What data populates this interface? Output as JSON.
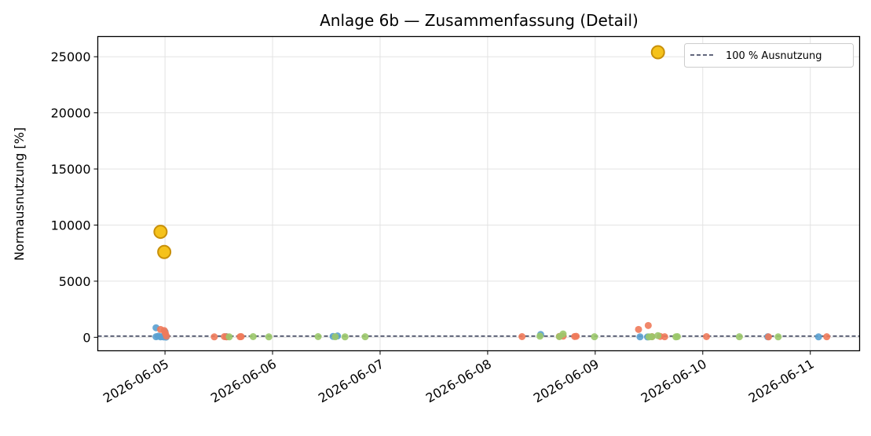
{
  "chart_data": {
    "type": "scatter",
    "title": "Anlage 6b — Zusammenfassung (Detail)",
    "xlabel": "",
    "ylabel": "Normausnutzung [%]",
    "xlim": [
      "2026-06-04 09:00",
      "2026-06-11 11:00"
    ],
    "ylim": [
      -1200,
      26800
    ],
    "yticks": [
      0,
      5000,
      10000,
      15000,
      20000,
      25000
    ],
    "xticks": [
      "2026-06-05",
      "2026-06-06",
      "2026-06-07",
      "2026-06-08",
      "2026-06-09",
      "2026-06-10",
      "2026-06-11"
    ],
    "grid": true,
    "legend_position": "top-right",
    "reference_line": {
      "label": "100 % Ausnutzung",
      "y": 100,
      "color": "#2e3450",
      "style": "dashed"
    },
    "colors": {
      "blue": "#5aa0d0",
      "orange": "#f07a5a",
      "green": "#9bc86a",
      "highlight_fill": "#f5c21b",
      "highlight_edge": "#c8900a"
    },
    "series": [
      {
        "color": "blue",
        "points": [
          [
            "2026-06-04 22:00",
            850
          ],
          [
            "2026-06-04 22:00",
            50
          ],
          [
            "2026-06-04 22:30",
            100
          ],
          [
            "2026-06-04 23:00",
            40
          ],
          [
            "2026-06-04 23:20",
            60
          ],
          [
            "2026-06-04 23:45",
            30
          ],
          [
            "2026-06-05 00:00",
            500
          ],
          [
            "2026-06-05 00:15",
            20
          ],
          [
            "2026-06-05 13:40",
            60
          ],
          [
            "2026-06-06 13:30",
            80
          ],
          [
            "2026-06-06 14:30",
            120
          ],
          [
            "2026-06-08 11:50",
            250
          ],
          [
            "2026-06-09 10:00",
            40
          ],
          [
            "2026-06-09 11:40",
            30
          ],
          [
            "2026-06-10 14:30",
            50
          ],
          [
            "2026-06-11 01:50",
            40
          ]
        ]
      },
      {
        "color": "orange",
        "points": [
          [
            "2026-06-04 23:00",
            700
          ],
          [
            "2026-06-04 23:50",
            600
          ],
          [
            "2026-06-05 00:05",
            350
          ],
          [
            "2026-06-05 00:20",
            100
          ],
          [
            "2026-06-05 11:00",
            40
          ],
          [
            "2026-06-05 13:15",
            60
          ],
          [
            "2026-06-05 13:45",
            40
          ],
          [
            "2026-06-05 16:45",
            50
          ],
          [
            "2026-06-05 17:00",
            60
          ],
          [
            "2026-06-08 07:40",
            60
          ],
          [
            "2026-06-08 16:00",
            80
          ],
          [
            "2026-06-08 16:50",
            100
          ],
          [
            "2026-06-08 19:25",
            70
          ],
          [
            "2026-06-08 19:45",
            90
          ],
          [
            "2026-06-09 09:40",
            700
          ],
          [
            "2026-06-09 11:50",
            1050
          ],
          [
            "2026-06-09 12:40",
            60
          ],
          [
            "2026-06-09 14:30",
            80
          ],
          [
            "2026-06-09 15:30",
            50
          ],
          [
            "2026-06-10 00:50",
            60
          ],
          [
            "2026-06-10 14:40",
            40
          ],
          [
            "2026-06-11 03:40",
            50
          ]
        ]
      },
      {
        "color": "green",
        "points": [
          [
            "2026-06-05 14:20",
            40
          ],
          [
            "2026-06-05 19:40",
            60
          ],
          [
            "2026-06-05 23:10",
            40
          ],
          [
            "2026-06-06 10:10",
            60
          ],
          [
            "2026-06-06 14:00",
            50
          ],
          [
            "2026-06-06 16:10",
            40
          ],
          [
            "2026-06-06 20:40",
            50
          ],
          [
            "2026-06-08 11:40",
            100
          ],
          [
            "2026-06-08 16:00",
            60
          ],
          [
            "2026-06-08 16:50",
            300
          ],
          [
            "2026-06-08 23:50",
            50
          ],
          [
            "2026-06-09 12:00",
            40
          ],
          [
            "2026-06-09 12:40",
            50
          ],
          [
            "2026-06-09 14:00",
            150
          ],
          [
            "2026-06-09 18:00",
            40
          ],
          [
            "2026-06-09 18:20",
            60
          ],
          [
            "2026-06-10 08:10",
            50
          ],
          [
            "2026-06-10 16:50",
            40
          ]
        ]
      },
      {
        "color": "highlight",
        "points": [
          [
            "2026-06-04 23:00",
            9400
          ],
          [
            "2026-06-04 23:50",
            7600
          ],
          [
            "2026-06-09 14:00",
            25400
          ]
        ]
      }
    ]
  }
}
